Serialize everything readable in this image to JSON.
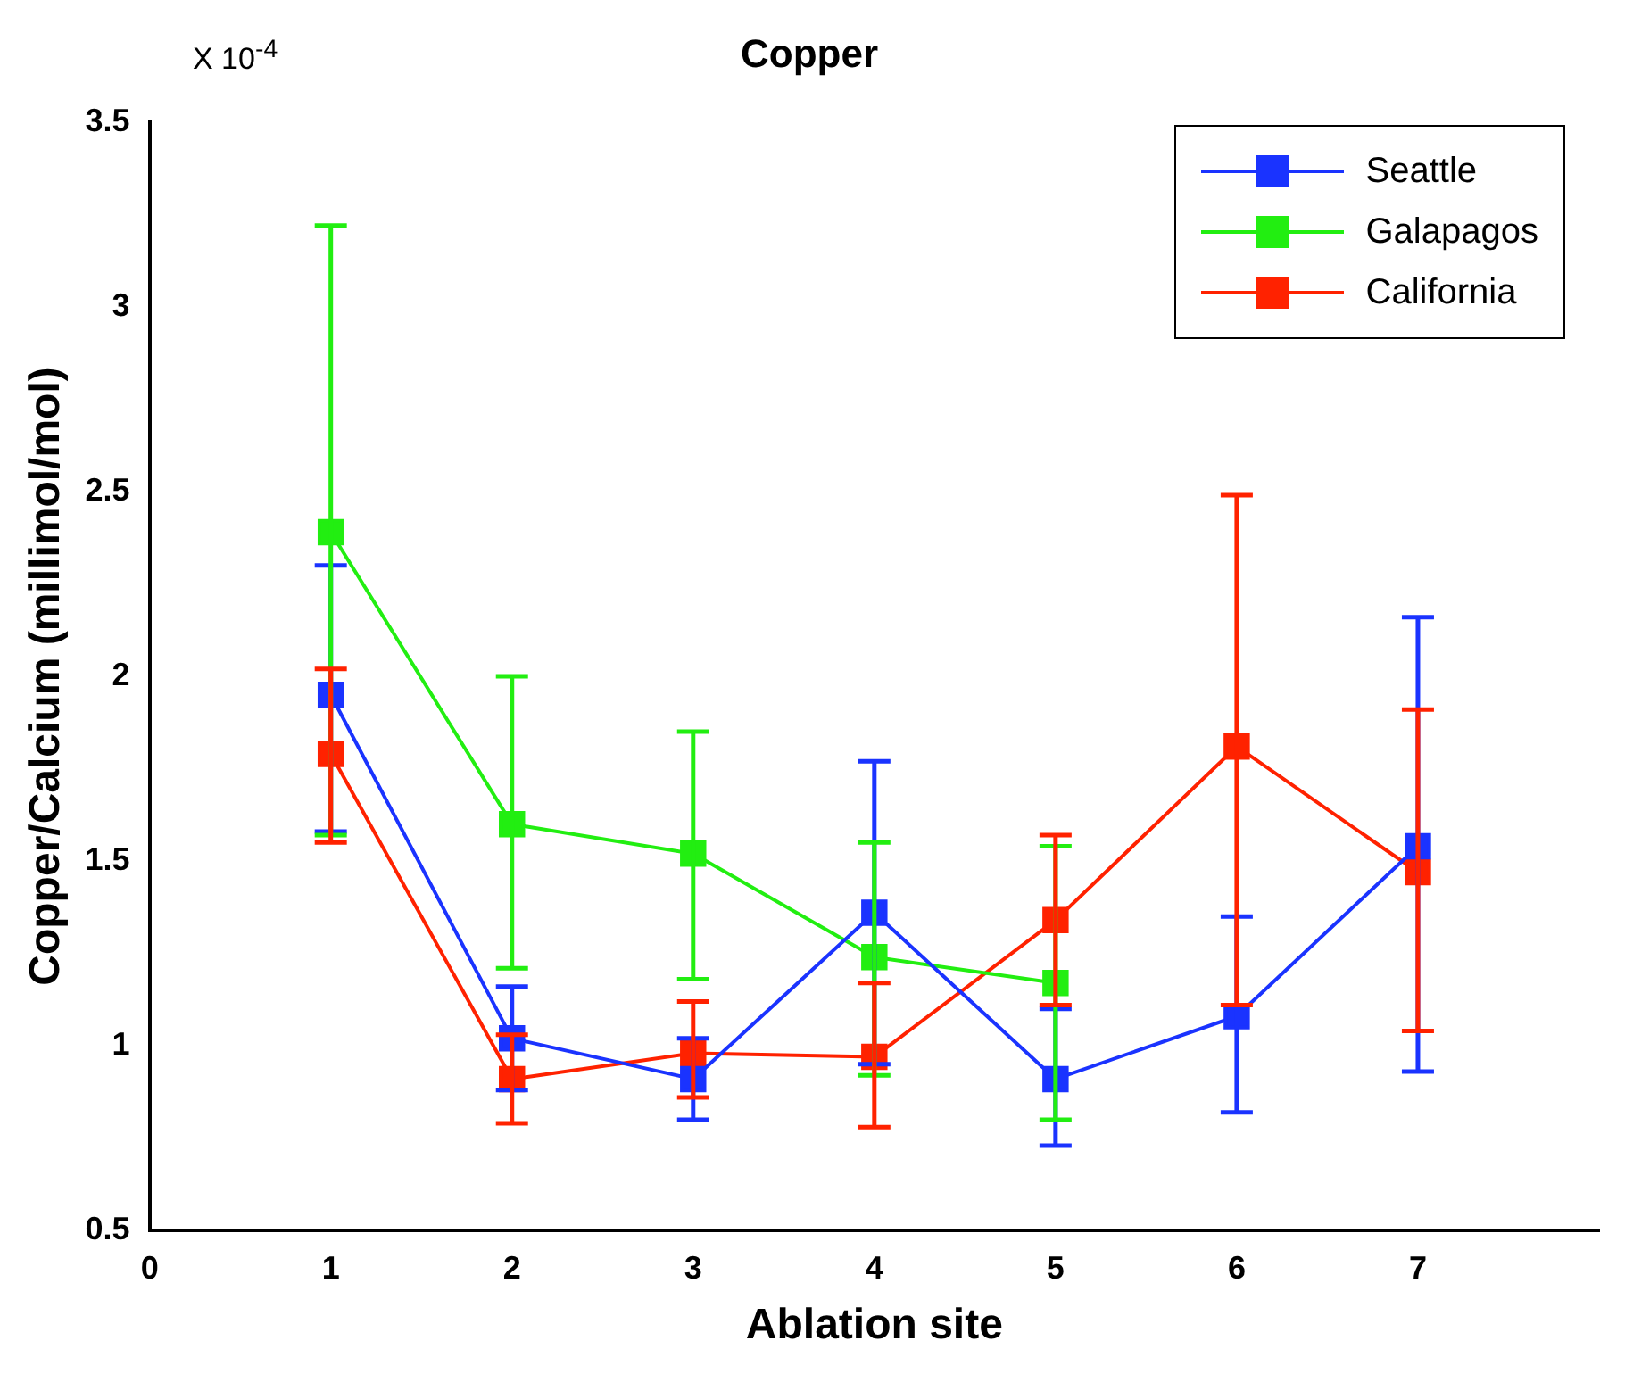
{
  "chart_data": {
    "type": "line",
    "title": "Copper",
    "xlabel": "Ablation site",
    "ylabel": "Copper/Calcium (millimol/mol)",
    "annotations": [
      "X 10$^{-4}$"
    ],
    "x": [
      1,
      2,
      3,
      4,
      5,
      6,
      7
    ],
    "xlim": [
      0,
      8
    ],
    "xticks": [
      0,
      1,
      2,
      3,
      4,
      5,
      6,
      7
    ],
    "ylim": [
      0.5,
      3.5
    ],
    "yticks": [
      0.5,
      1,
      1.5,
      2,
      2.5,
      3,
      3.5
    ],
    "marker": "square",
    "legend": "top right",
    "grid": false,
    "series": [
      {
        "name": "Seattle",
        "color": "#1a33ff",
        "values": [
          1.95,
          1.02,
          0.91,
          1.36,
          0.91,
          1.08,
          1.54
        ],
        "errors": [
          [
            1.58,
            2.3
          ],
          [
            0.88,
            1.16
          ],
          [
            0.8,
            1.02
          ],
          [
            0.95,
            1.77
          ],
          [
            0.73,
            1.1
          ],
          [
            0.82,
            1.35
          ],
          [
            0.93,
            2.16
          ]
        ]
      },
      {
        "name": "Galapagos",
        "color": "#22ee11",
        "values": [
          2.39,
          1.6,
          1.52,
          1.24,
          1.17,
          null,
          null
        ],
        "errors": [
          [
            1.57,
            3.22
          ],
          [
            1.21,
            2.0
          ],
          [
            1.18,
            1.85
          ],
          [
            0.92,
            1.55
          ],
          [
            0.8,
            1.54
          ],
          null,
          null
        ]
      },
      {
        "name": "California",
        "color": "#ff2200",
        "values": [
          1.79,
          0.91,
          0.98,
          0.97,
          1.34,
          1.81,
          1.47
        ],
        "errors": [
          [
            1.55,
            2.02
          ],
          [
            0.79,
            1.03
          ],
          [
            0.86,
            1.12
          ],
          [
            0.78,
            1.17
          ],
          [
            1.11,
            1.57
          ],
          [
            1.11,
            2.49
          ],
          [
            1.04,
            1.91
          ]
        ]
      }
    ]
  }
}
